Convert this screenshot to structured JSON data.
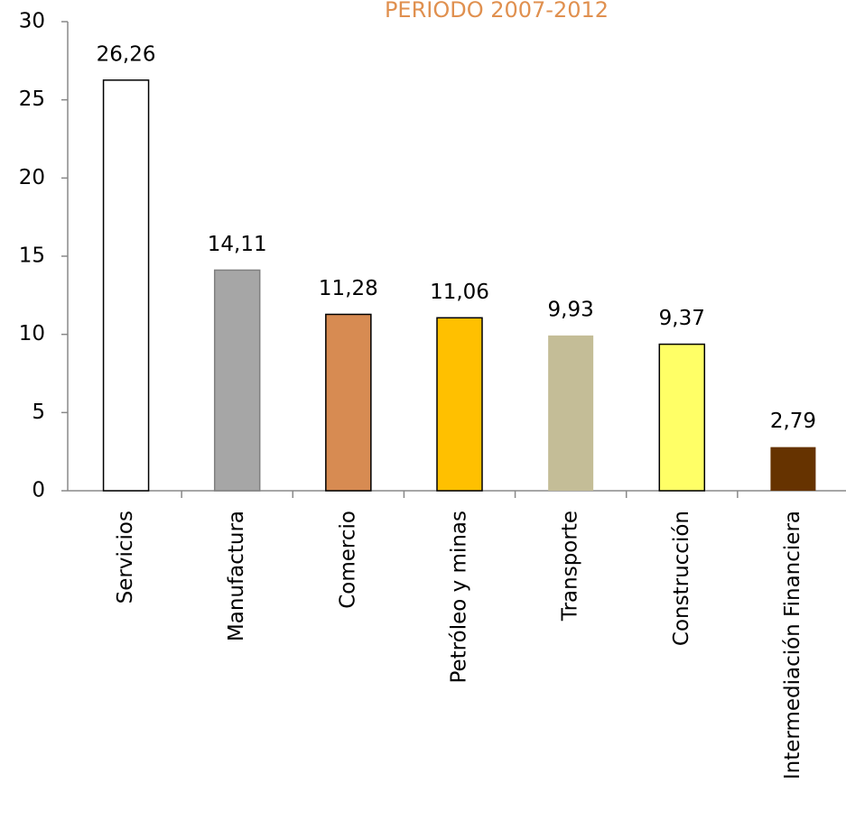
{
  "chart_data": {
    "type": "bar",
    "title": "PERIODO 2007-2012",
    "categories": [
      "Servicios",
      "Manufactura",
      "Comercio",
      "Petróleo y minas",
      "Transporte",
      "Construcción",
      "Intermediación Financiera"
    ],
    "values": [
      26.26,
      14.11,
      11.28,
      11.06,
      9.93,
      9.37,
      2.79
    ],
    "value_labels": [
      "26,26",
      "14,11",
      "11,28",
      "11,06",
      "9,93",
      "9,37",
      "2,79"
    ],
    "colors": [
      "#ffffff",
      "#a6a6a6",
      "#d78b52",
      "#ffc000",
      "#c4bd97",
      "#ffff66",
      "#663300"
    ],
    "ylim": [
      0,
      30
    ],
    "yticks": [
      0,
      5,
      10,
      15,
      20,
      25,
      30
    ],
    "grid": false
  }
}
